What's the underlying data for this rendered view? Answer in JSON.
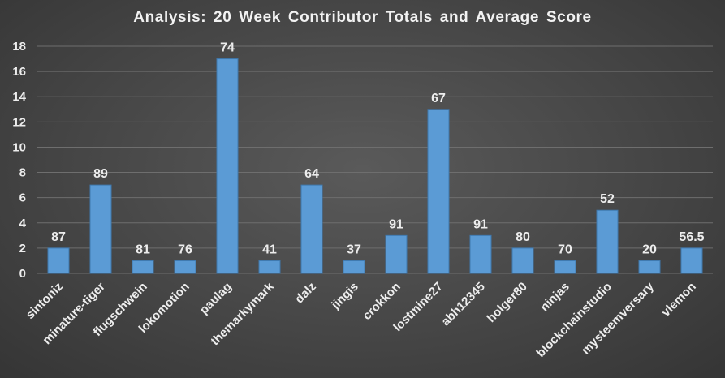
{
  "chart_data": {
    "type": "bar",
    "title": "Analysis:  20 Week Contributor Totals and Average Score",
    "xlabel": "",
    "ylabel": "",
    "ylim": [
      0,
      18
    ],
    "yticks": [
      0,
      2,
      4,
      6,
      8,
      10,
      12,
      14,
      16,
      18
    ],
    "grid": true,
    "legend": "none",
    "categories": [
      "sintoniz",
      "minature-tiger",
      "flugschwein",
      "lokomotion",
      "paulag",
      "themarkymark",
      "dalz",
      "jingis",
      "crokkon",
      "lostmine27",
      "abh12345",
      "holger80",
      "ninjas",
      "blockchainstudio",
      "mysteemversary",
      "vlemon"
    ],
    "series": [
      {
        "values": [
          2,
          7,
          1,
          1,
          17,
          1,
          7,
          1,
          3,
          13,
          3,
          2,
          1,
          5,
          1,
          2
        ],
        "data_labels": [
          "87",
          "89",
          "81",
          "76",
          "74",
          "41",
          "64",
          "37",
          "91",
          "67",
          "91",
          "80",
          "70",
          "52",
          "20",
          "56.5"
        ]
      }
    ],
    "colors": {
      "bar": "#5b9bd5",
      "bar_edge": "#3f78ad",
      "gridline": "#6e6e6e",
      "text": "#ededed"
    }
  }
}
